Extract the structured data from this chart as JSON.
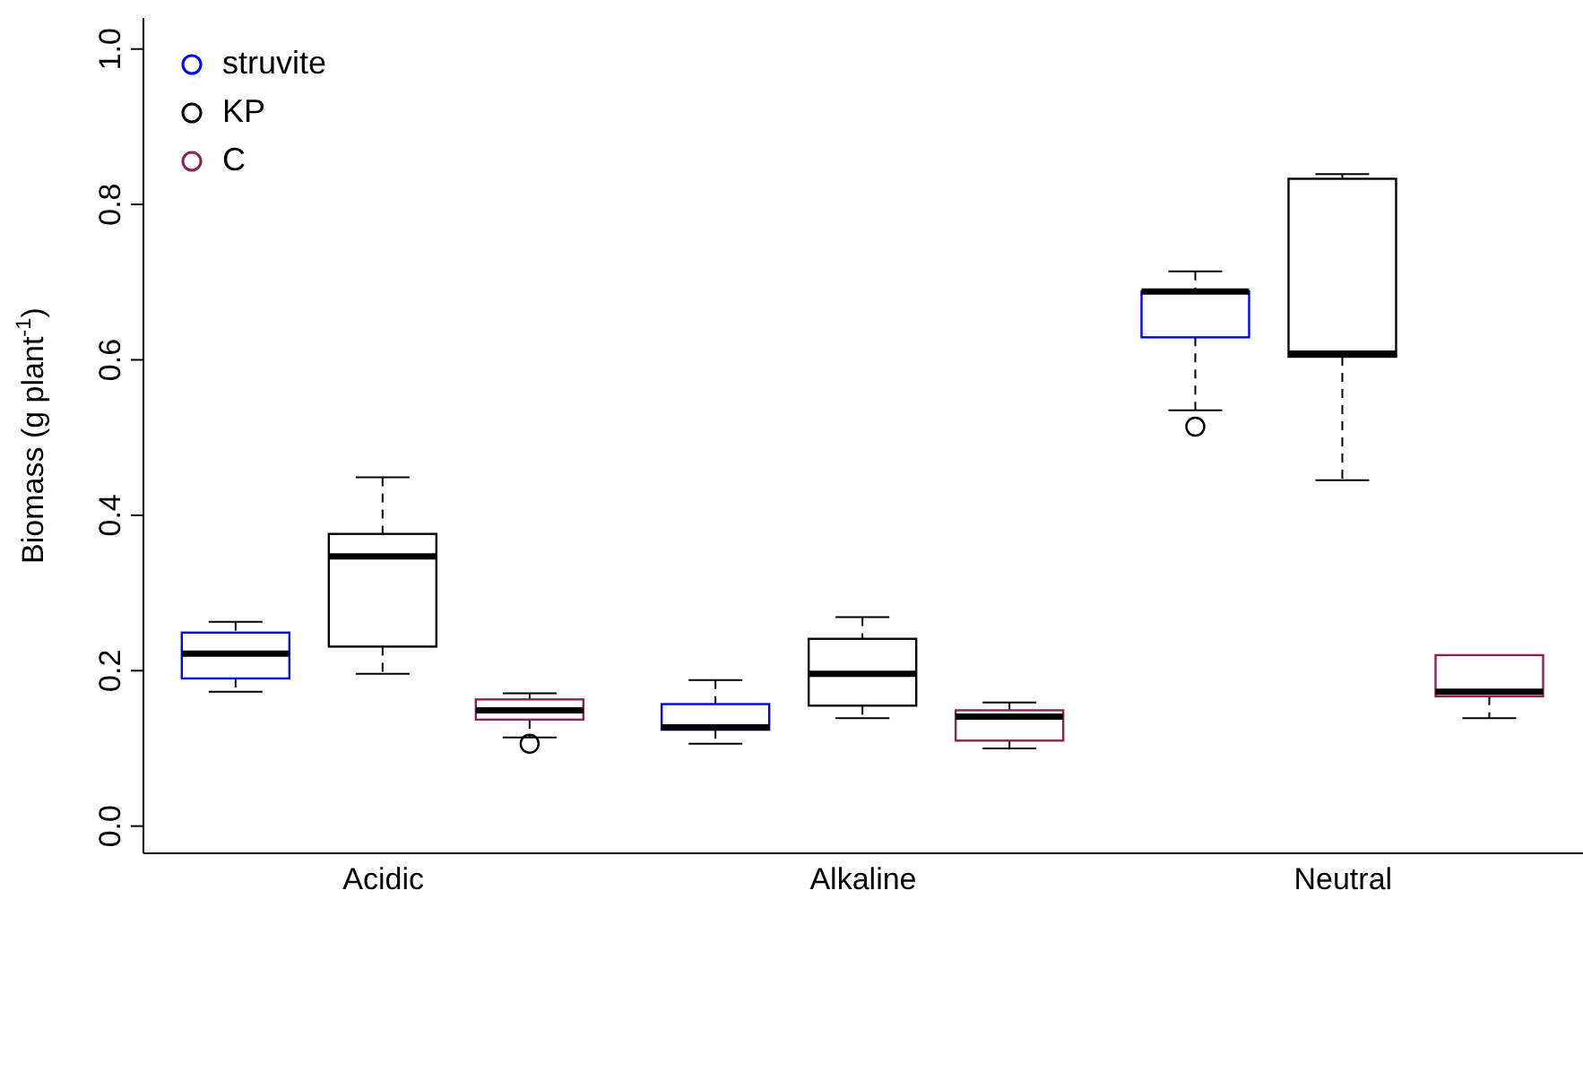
{
  "chart_data": {
    "type": "box",
    "ylabel": "Biomass (g plant$^{-1}$)",
    "categories": [
      "Acidic",
      "Alkaline",
      "Neutral"
    ],
    "ylim": [
      -0.035,
      1.04
    ],
    "yticks": [
      {
        "value": 0,
        "label": "0.0"
      },
      {
        "value": 0.2,
        "label": "0.2"
      },
      {
        "value": 0.4,
        "label": "0.4"
      },
      {
        "value": 0.6,
        "label": "0.6"
      },
      {
        "value": 0.8,
        "label": "0.8"
      },
      {
        "value": 1,
        "label": "1.0"
      }
    ],
    "grid": false,
    "legend": "top left",
    "marker": "circle",
    "series": [
      {
        "name": "struvite",
        "color": "#0000ff",
        "boxes": [
          {
            "low": 0.173,
            "q1": 0.19,
            "median": 0.222,
            "q3": 0.249,
            "high": 0.263
          },
          {
            "low": 0.106,
            "q1": 0.124,
            "median": 0.127,
            "q3": 0.157,
            "high": 0.188
          },
          {
            "low": 0.535,
            "q1": 0.629,
            "median": 0.688,
            "q3": 0.688,
            "high": 0.714,
            "outliers": [
              0.514
            ]
          }
        ]
      },
      {
        "name": "KP",
        "color": "#000000",
        "boxes": [
          {
            "low": 0.196,
            "q1": 0.231,
            "median": 0.347,
            "q3": 0.376,
            "high": 0.449
          },
          {
            "low": 0.139,
            "q1": 0.155,
            "median": 0.196,
            "q3": 0.241,
            "high": 0.269
          },
          {
            "low": 0.445,
            "q1": 0.604,
            "median": 0.608,
            "q3": 0.833,
            "high": 0.839
          }
        ]
      },
      {
        "name": "C",
        "color": "#8b2252",
        "boxes": [
          {
            "low": 0.114,
            "q1": 0.137,
            "median": 0.149,
            "q3": 0.163,
            "high": 0.171,
            "outliers": [
              0.106
            ]
          },
          {
            "low": 0.1,
            "q1": 0.11,
            "median": 0.141,
            "q3": 0.149,
            "high": 0.159
          },
          {
            "low": 0.139,
            "q1": 0.167,
            "median": 0.173,
            "q3": 0.22,
            "high": 0.22
          }
        ]
      }
    ]
  }
}
